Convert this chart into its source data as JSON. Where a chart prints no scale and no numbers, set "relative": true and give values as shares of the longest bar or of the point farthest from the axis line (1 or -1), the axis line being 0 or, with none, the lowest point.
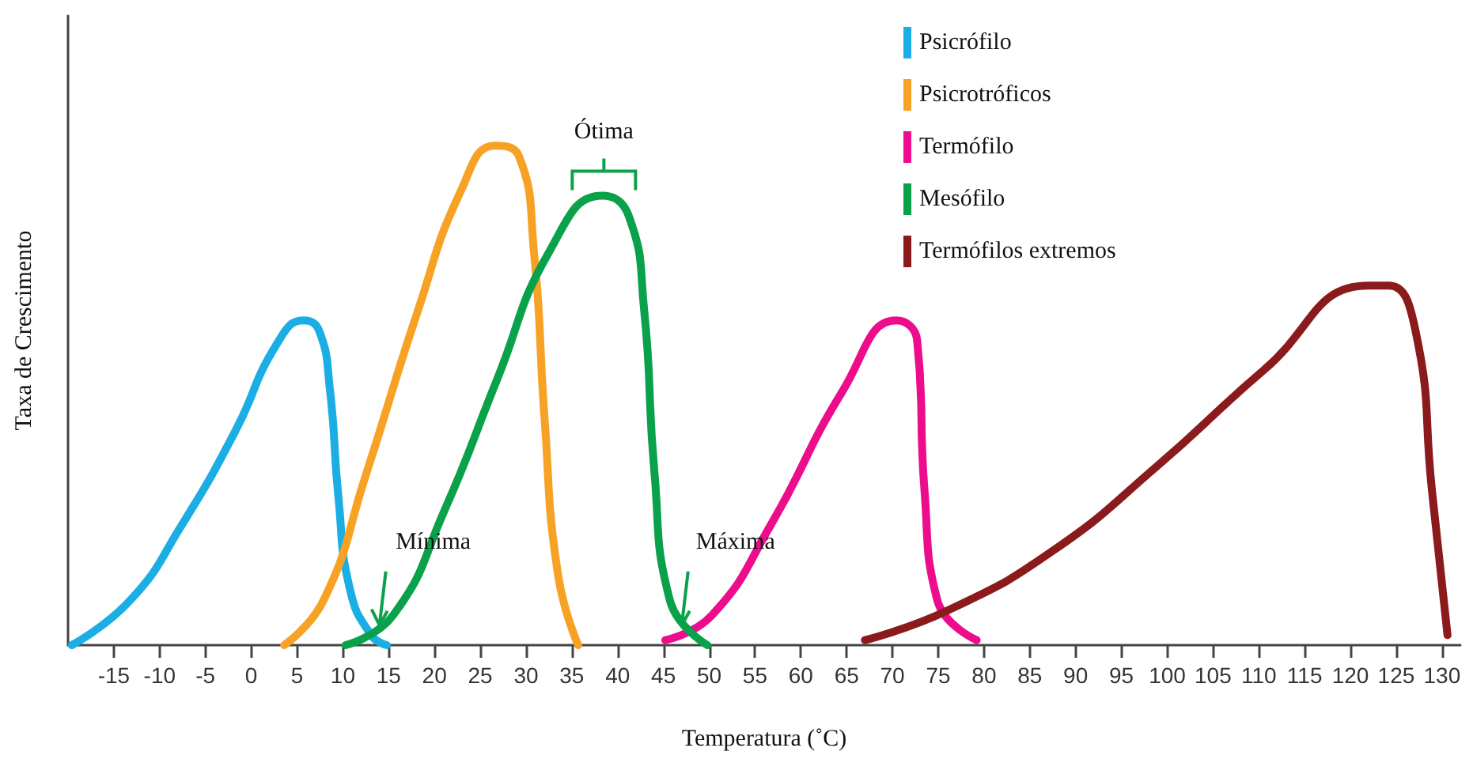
{
  "chart_data": {
    "type": "line",
    "relative": true,
    "xlabel": "Temperatura (˚C)",
    "ylabel": "Taxa de Crescimento",
    "xlim": [
      -20,
      132
    ],
    "xticks": [
      -15,
      -10,
      -5,
      0,
      5,
      10,
      15,
      20,
      25,
      30,
      35,
      40,
      45,
      50,
      55,
      60,
      65,
      70,
      75,
      80,
      85,
      90,
      95,
      100,
      105,
      110,
      115,
      120,
      125,
      130
    ],
    "grid": false,
    "legend": "top right",
    "marker": "none",
    "line_style": "solid",
    "annotations": [
      {
        "text": "Ótima",
        "x": 38.5,
        "y": 0.93
      },
      {
        "text": "Mínima",
        "x": 14,
        "y": 0.04
      },
      {
        "text": "Máxima",
        "x": 47,
        "y": 0.04
      }
    ],
    "series": [
      {
        "name": "Psicrófilo",
        "color": "#1aaee5",
        "x": [
          -19.6,
          -13.2,
          -7.6,
          -1.7,
          2.7,
          5.7,
          7.4,
          8.6,
          9.5,
          10.8,
          13.1,
          14.8
        ],
        "values": [
          0,
          0.09,
          0.24,
          0.43,
          0.6,
          0.65,
          0.63,
          0.51,
          0.3,
          0.11,
          0.02,
          0
        ]
      },
      {
        "name": "Psicrotróficos",
        "color": "#f7a125",
        "x": [
          3.6,
          7.9,
          12.5,
          18.2,
          22.9,
          26.6,
          29.2,
          30.9,
          32,
          33.5,
          35.7
        ],
        "values": [
          0,
          0.09,
          0.34,
          0.67,
          0.91,
          1,
          0.98,
          0.78,
          0.46,
          0.14,
          0
        ]
      },
      {
        "name": "Termófilo",
        "color": "#ec0c8c",
        "x": [
          45.2,
          50.3,
          56.7,
          64.6,
          70.4,
          72.7,
          73.5,
          74.9,
          79.2
        ],
        "values": [
          0.01,
          0.06,
          0.24,
          0.51,
          0.65,
          0.61,
          0.31,
          0.09,
          0.01
        ]
      },
      {
        "name": "Mesófilo",
        "color": "#0aa14b",
        "x": [
          10.3,
          15.5,
          21.1,
          26.8,
          32.6,
          38.3,
          41.2,
          42.9,
          44,
          45.7,
          49.8
        ],
        "values": [
          0,
          0.06,
          0.27,
          0.53,
          0.79,
          0.9,
          0.86,
          0.67,
          0.35,
          0.09,
          0
        ]
      },
      {
        "name": "Termófilos extremos",
        "color": "#8b1a1c",
        "x": [
          67,
          76.1,
          87.6,
          99,
          110.5,
          122,
          124.2,
          127.1,
          128.9,
          130.6
        ],
        "values": [
          0.01,
          0.07,
          0.19,
          0.36,
          0.55,
          0.72,
          0.72,
          0.63,
          0.31,
          0.02
        ]
      }
    ]
  }
}
